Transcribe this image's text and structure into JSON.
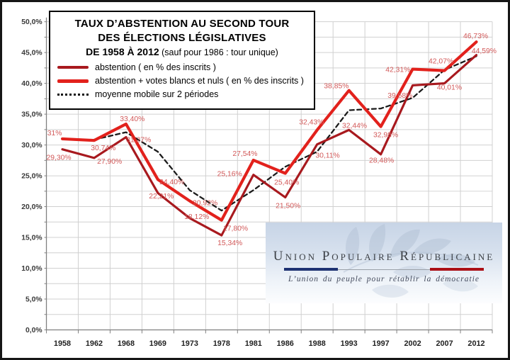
{
  "legend_box": {
    "title_line1": "TAUX D’ABSTENTION AU SECOND TOUR",
    "title_line2": "DES ÉLECTIONS LÉGISLATIVES",
    "title_line3_bold": "DE 1958 À 2012",
    "title_line3_rest": " (sauf pour 1986 : tour unique)",
    "items": [
      {
        "label": "abstention ( en % des inscrits )",
        "color": "#a8191e",
        "style": "solid"
      },
      {
        "label": "abstention + votes blancs et nuls ( en % des inscrits )",
        "color": "#e2211c",
        "style": "solid"
      },
      {
        "label": "moyenne mobile sur 2 périodes",
        "color": "#111111",
        "style": "dotted"
      }
    ]
  },
  "chart_data": {
    "type": "line",
    "categories": [
      "1958",
      "1962",
      "1968",
      "1969",
      "1973",
      "1978",
      "1981",
      "1986",
      "1988",
      "1993",
      "1997",
      "2002",
      "2007",
      "2012"
    ],
    "ylim": [
      0,
      50
    ],
    "y_major_step": 5,
    "y_minor_step": 2.5,
    "y_tick_labels": [
      "50,0%",
      "45,0%",
      "40,0%",
      "35,0%",
      "30,0%",
      "25,0%",
      "20,0%",
      "15,0%",
      "10,0%",
      "5,0%",
      "0,0%"
    ],
    "grid": "on",
    "legend_position": "top-left box",
    "label_color": "#d25959",
    "axis_color": "#7f7f7f",
    "grid_color": "#d0d0d0",
    "series": [
      {
        "name": "abstention ( en % des inscrits )",
        "color": "#a8191e",
        "width": 3.2,
        "dash": null,
        "values": [
          29.3,
          27.9,
          31.27,
          22.21,
          18.12,
          15.34,
          25.16,
          21.5,
          30.11,
          32.44,
          28.48,
          39.68,
          40.01,
          44.59
        ],
        "labels": [
          "29,30%",
          "27,90%",
          "31,27%",
          "22,21%",
          "18,12%",
          "15,34%",
          "25,16%",
          "21,50%",
          "30,11%",
          "32,44%",
          "28,48%",
          "39,68%",
          "40,01%",
          "44,59%"
        ],
        "label_offsets": [
          [
            -5,
            15
          ],
          [
            22,
            8
          ],
          [
            18,
            7
          ],
          [
            5,
            8
          ],
          [
            10,
            1
          ],
          [
            12,
            14
          ],
          [
            -34,
            2
          ],
          [
            4,
            15
          ],
          [
            15,
            19
          ],
          [
            8,
            -3
          ],
          [
            1,
            12
          ],
          [
            -18,
            18
          ],
          [
            7,
            9
          ],
          [
            11,
            -3
          ]
        ]
      },
      {
        "name": "abstention + votes blancs et nuls ( en % des inscrits )",
        "color": "#e2211c",
        "width": 4.2,
        "dash": null,
        "values": [
          31.0,
          30.74,
          33.4,
          24.4,
          20.92,
          17.8,
          27.54,
          25.4,
          32.43,
          38.85,
          32.98,
          42.31,
          42.07,
          46.73
        ],
        "labels": [
          "31%",
          "30,74%",
          "33,40%",
          "24,40%",
          "20,92%",
          "17,80%",
          "27,54%",
          "25,40%",
          "32,43%",
          "38,85%",
          "32,98%",
          "42,31%",
          "42,07%",
          "46,73%"
        ],
        "label_offsets": [
          [
            -11,
            -5
          ],
          [
            13,
            14
          ],
          [
            9,
            -4
          ],
          [
            20,
            7
          ],
          [
            22,
            6
          ],
          [
            20,
            15
          ],
          [
            -12,
            -6
          ],
          [
            2,
            16
          ],
          [
            -8,
            -8
          ],
          [
            -18,
            -3
          ],
          [
            7,
            15
          ],
          [
            -21,
            4
          ],
          [
            -5,
            -10
          ],
          [
            -1,
            -5
          ]
        ]
      },
      {
        "name": "moyenne mobile sur 2 périodes",
        "color": "#1a1a1a",
        "width": 2.3,
        "dash": "6 4.5",
        "values": [
          null,
          30.87,
          32.07,
          28.9,
          22.66,
          19.36,
          22.67,
          26.47,
          28.92,
          35.64,
          35.92,
          37.65,
          42.19,
          44.4
        ],
        "labels": [],
        "label_offsets": []
      }
    ]
  },
  "logo": {
    "title": "Union Populaire Républicaine",
    "subtitle": "L’union du peuple pour rétablir la démocratie",
    "colors": {
      "blue": "#1e3272",
      "red": "#ab1016",
      "gray": "#9aa0a8",
      "text": "#3c4046"
    }
  }
}
